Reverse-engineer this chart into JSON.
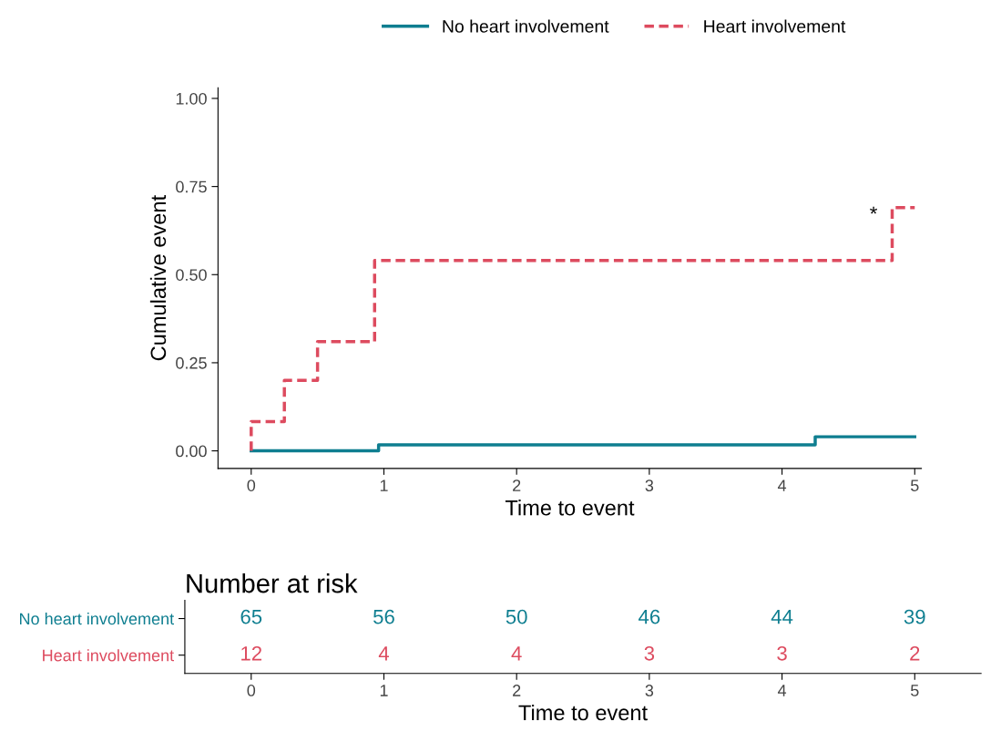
{
  "chart_data": [
    {
      "type": "step",
      "xlabel": "Time to event",
      "ylabel": "Cumulative event",
      "xlim": [
        -0.25,
        5.05
      ],
      "xticks": [
        0,
        1,
        2,
        3,
        4,
        5
      ],
      "ylim": [
        -0.05,
        1.03
      ],
      "yticks": [
        {
          "value": 0,
          "label": "0.00"
        },
        {
          "value": 0.25,
          "label": "0.25"
        },
        {
          "value": 0.5,
          "label": "0.50"
        },
        {
          "value": 0.75,
          "label": "0.75"
        },
        {
          "value": 1,
          "label": "1.00"
        }
      ],
      "grid": false,
      "legend": "top",
      "series": [
        {
          "name": "No heart involvement",
          "color": "#0e7e90",
          "line_style": "solid",
          "x": [
            0,
            0.96,
            4.25,
            5
          ],
          "values": [
            0,
            0.017,
            0.04,
            0.04
          ]
        },
        {
          "name": "Heart involvement",
          "color": "#dd4b5f",
          "line_style": "dashed",
          "x": [
            0,
            0,
            0.25,
            0.5,
            0.93,
            4.83,
            5
          ],
          "values": [
            0,
            0.083,
            0.2,
            0.31,
            0.54,
            0.69,
            0.69
          ]
        }
      ],
      "annotations": [
        "*"
      ]
    },
    {
      "type": "heatmap",
      "title": "Number at risk",
      "xlabel": "Time to event",
      "categories": [
        "0",
        "1",
        "2",
        "3",
        "4",
        "5"
      ],
      "y_categories": [
        "No heart involvement",
        "Heart involvement"
      ],
      "colors": [
        "#0e7e90",
        "#dd4b5f"
      ],
      "cells": [
        [
          65,
          56,
          50,
          46,
          44,
          39
        ],
        [
          12,
          4,
          4,
          3,
          3,
          2
        ]
      ],
      "data_labels": true
    }
  ]
}
